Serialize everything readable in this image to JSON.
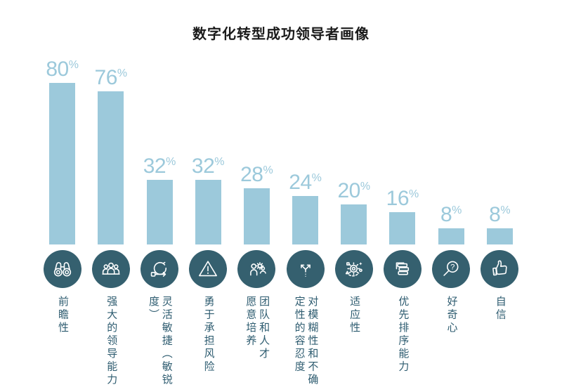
{
  "title": "数字化转型成功领导者画像",
  "colors": {
    "bar": "#9CC9DB",
    "value_text": "#9CC9DB",
    "icon_circle": "#35606F",
    "icon_stroke": "#FFFFFF",
    "category_label": "#2E5C70",
    "title": "#1A1A1A",
    "background": "#FFFFFF"
  },
  "chart_data": {
    "type": "bar",
    "title": "数字化转型成功领导者画像",
    "unit": "%",
    "categories": [
      "前瞻性",
      "强大的领导能力",
      "灵活敏捷（敏锐度）",
      "勇于承担风险",
      "团队和人才\n愿意培养",
      "对模糊性和不确\n定性的容忍度",
      "适应性",
      "优先排序能力",
      "好奇心",
      "自信"
    ],
    "values": [
      80,
      76,
      32,
      32,
      28,
      24,
      20,
      16,
      8,
      8
    ],
    "icons": [
      "binoculars-icon",
      "people-group-icon",
      "agile-cycle-icon",
      "warning-triangle-icon",
      "person-gear-icon",
      "fork-arrows-icon",
      "gear-shapes-icon",
      "stacked-bars-icon",
      "magnifier-question-icon",
      "thumbs-up-icon"
    ],
    "ylim": [
      0,
      100
    ],
    "grid": false,
    "legend": false,
    "value_labels": "above-bars",
    "category_label_orientation": "vertical"
  }
}
